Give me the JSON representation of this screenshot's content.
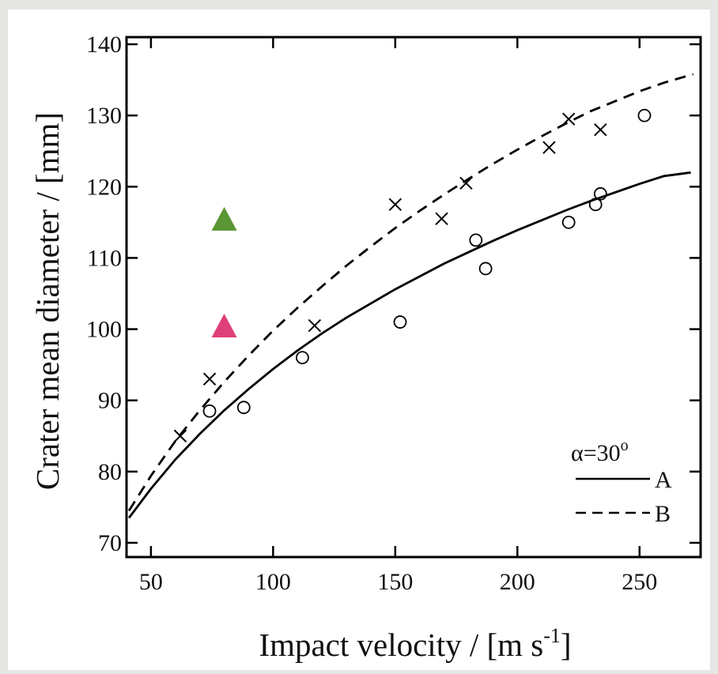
{
  "chart_data": {
    "type": "scatter",
    "xlabel": "Impact velocity / [m s",
    "xlabel_sup": "-1",
    "xlabel_end": "]",
    "ylabel": "Crater mean diameter / [mm]",
    "xlim": [
      40,
      275
    ],
    "ylim": [
      68,
      141
    ],
    "xticks": [
      50,
      100,
      150,
      200,
      250
    ],
    "yticks": [
      70,
      80,
      90,
      100,
      110,
      120,
      130,
      140
    ],
    "grid": false,
    "legend": {
      "title": "α=30",
      "title_sup": "o",
      "placement": "bottom-right",
      "entries": [
        "A",
        "B"
      ]
    },
    "series": [
      {
        "name": "A",
        "style": "solid",
        "marker": "circle",
        "color": "#000000",
        "points": [
          {
            "x": 74,
            "y": 88.5
          },
          {
            "x": 88,
            "y": 89
          },
          {
            "x": 112,
            "y": 96
          },
          {
            "x": 152,
            "y": 101
          },
          {
            "x": 183,
            "y": 112.5
          },
          {
            "x": 187,
            "y": 108.5
          },
          {
            "x": 221,
            "y": 115
          },
          {
            "x": 232,
            "y": 117.5
          },
          {
            "x": 234,
            "y": 119
          },
          {
            "x": 252,
            "y": 130
          }
        ],
        "curve": {
          "x": [
            41,
            50,
            60,
            70,
            80,
            90,
            100,
            110,
            120,
            130,
            140,
            150,
            160,
            170,
            180,
            190,
            200,
            210,
            220,
            230,
            240,
            250,
            260,
            271
          ],
          "y": [
            73.5,
            77.6,
            81.7,
            85.3,
            88.6,
            91.6,
            94.4,
            97.0,
            99.4,
            101.6,
            103.6,
            105.6,
            107.4,
            109.2,
            110.8,
            112.4,
            113.9,
            115.3,
            116.7,
            118.0,
            119.2,
            120.4,
            121.5,
            122.0
          ]
        }
      },
      {
        "name": "B",
        "style": "dashed",
        "marker": "cross",
        "color": "#000000",
        "points": [
          {
            "x": 62,
            "y": 85
          },
          {
            "x": 74,
            "y": 93
          },
          {
            "x": 117,
            "y": 100.5
          },
          {
            "x": 150,
            "y": 117.5
          },
          {
            "x": 169,
            "y": 115.5
          },
          {
            "x": 179,
            "y": 120.5
          },
          {
            "x": 213,
            "y": 125.5
          },
          {
            "x": 221,
            "y": 129.5
          },
          {
            "x": 234,
            "y": 128
          }
        ],
        "curve": {
          "x": [
            41,
            50,
            60,
            70,
            80,
            90,
            100,
            110,
            120,
            130,
            140,
            150,
            160,
            170,
            180,
            190,
            200,
            210,
            220,
            230,
            240,
            250,
            260,
            272
          ],
          "y": [
            74.5,
            79.4,
            84.3,
            88.6,
            92.6,
            96.3,
            99.8,
            103.0,
            106.0,
            108.9,
            111.6,
            114.2,
            116.6,
            118.9,
            121.1,
            123.2,
            125.2,
            127.1,
            128.9,
            130.6,
            132.0,
            133.4,
            134.6,
            135.8
          ]
        }
      },
      {
        "marker": "triangle",
        "color": "#5a9633",
        "points": [
          {
            "x": 80,
            "y": 115.5
          }
        ]
      },
      {
        "marker": "triangle",
        "color": "#e0407a",
        "points": [
          {
            "x": 80,
            "y": 100.5
          }
        ]
      }
    ]
  }
}
